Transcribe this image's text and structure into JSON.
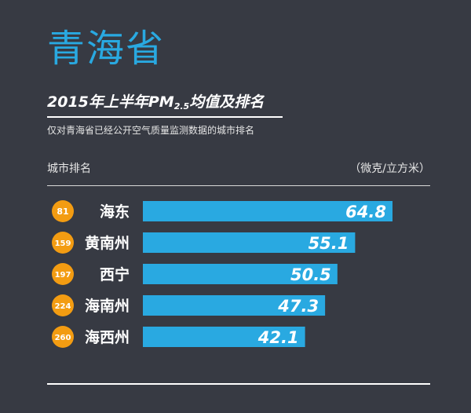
{
  "header": {
    "province": "青海省",
    "title_main": "2015年上半年PM",
    "title_sub": "2.5",
    "title_end": "均值及排名",
    "subtitle": "仅对青海省已经公开空气质量监测数据的城市排名"
  },
  "columns": {
    "left": "城市排名",
    "right": "（微克/立方米）"
  },
  "colors": {
    "background": "#373a43",
    "accent": "#29a9e1",
    "rank_badge": "#f39c12"
  },
  "chart_data": {
    "type": "bar",
    "orientation": "horizontal",
    "title": "2015年上半年PM2.5均值及排名",
    "xlabel": "（微克/立方米）",
    "ylabel": "城市排名",
    "categories": [
      "海东",
      "黄南州",
      "西宁",
      "海南州",
      "海西州"
    ],
    "ranks": [
      "81",
      "159",
      "197",
      "224",
      "260"
    ],
    "values": [
      64.8,
      55.1,
      50.5,
      47.3,
      42.1
    ],
    "value_labels": [
      "64.8",
      "55.1",
      "50.5",
      "47.3",
      "42.1"
    ],
    "xlim": [
      0,
      64.8
    ],
    "grid": false,
    "legend": "none"
  }
}
